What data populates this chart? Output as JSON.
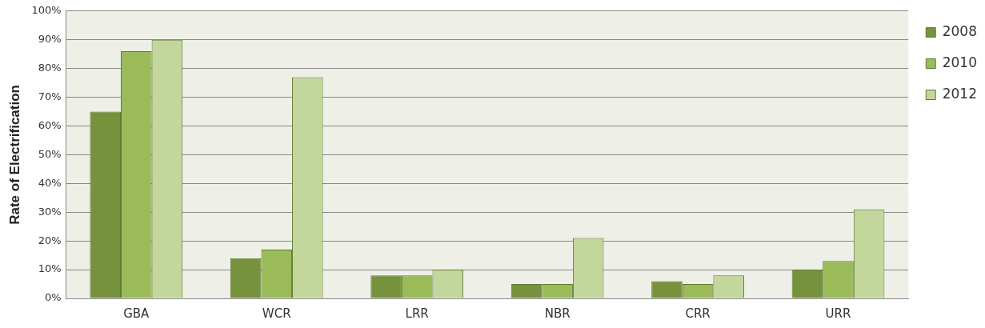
{
  "chart_data": {
    "type": "bar",
    "ylabel": "Rate of Electrification",
    "categories": [
      "GBA",
      "WCR",
      "LRR",
      "NBR",
      "CRR",
      "URR"
    ],
    "series": [
      {
        "name": "2008",
        "color": "#76923c",
        "values": [
          65,
          14,
          8,
          5,
          6,
          10
        ]
      },
      {
        "name": "2010",
        "color": "#9bbb59",
        "values": [
          86,
          17,
          8,
          5,
          5,
          13
        ]
      },
      {
        "name": "2012",
        "color": "#c3d69b",
        "values": [
          90,
          77,
          10,
          21,
          8,
          31
        ]
      }
    ],
    "ylim": [
      0,
      100
    ],
    "yticks": [
      {
        "value": 0,
        "label": "0%"
      },
      {
        "value": 10,
        "label": "10%"
      },
      {
        "value": 20,
        "label": "20%"
      },
      {
        "value": 30,
        "label": "30%"
      },
      {
        "value": 40,
        "label": "40%"
      },
      {
        "value": 50,
        "label": "50%"
      },
      {
        "value": 60,
        "label": "60%"
      },
      {
        "value": 70,
        "label": "70%"
      },
      {
        "value": 80,
        "label": "80%"
      },
      {
        "value": 90,
        "label": "90%"
      },
      {
        "value": 100,
        "label": "100%"
      }
    ],
    "grid": "y",
    "legend": "top right"
  }
}
